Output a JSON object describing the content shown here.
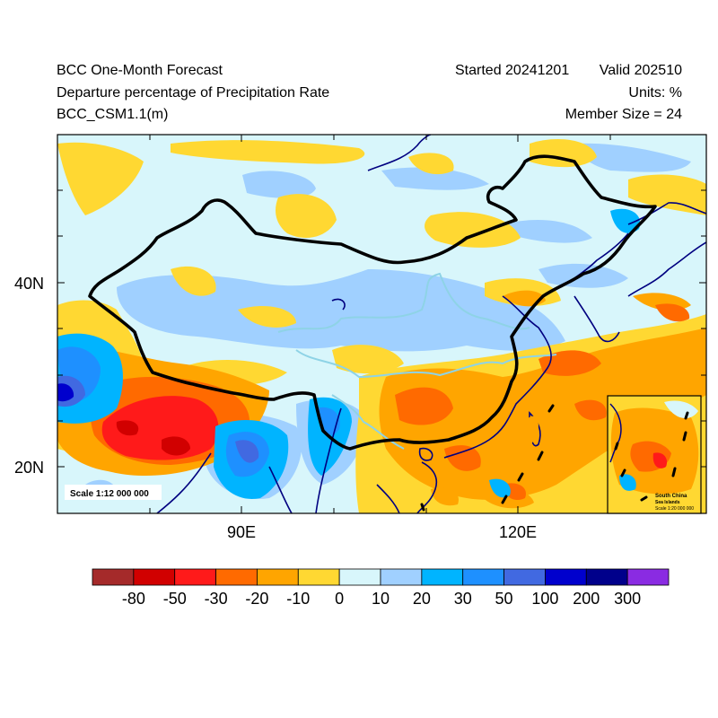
{
  "header": {
    "title_left_1": "BCC One-Month Forecast",
    "title_left_2": "Departure percentage of Precipitation Rate",
    "title_left_3": "BCC_CSM1.1(m)",
    "started": "Started 20241201",
    "valid": "Valid 202510",
    "units": "Units: %",
    "member_size": "Member Size = 24"
  },
  "axes": {
    "lat_labels": [
      "40N",
      "20N"
    ],
    "lon_labels": [
      "90E",
      "120E"
    ]
  },
  "scale_note": "Scale 1:12 000 000",
  "inset": {
    "title_1": "South China",
    "title_2": "Sea Islands",
    "scale": "Scale 1:20 000 000"
  },
  "colorbar": {
    "labels": [
      "-80",
      "-50",
      "-30",
      "-20",
      "-10",
      "0",
      "10",
      "20",
      "30",
      "50",
      "100",
      "200",
      "300"
    ],
    "colors": [
      "#a52a2a",
      "#d10000",
      "#ff1a1a",
      "#ff6a00",
      "#ffa500",
      "#ffd832",
      "#d8f6fb",
      "#a0d0ff",
      "#00b4ff",
      "#1e90ff",
      "#4169e1",
      "#0000cd",
      "#00008b",
      "#8a2be2"
    ]
  },
  "palette": {
    "light": "#d8f6fb",
    "lightblue": "#a0d0ff",
    "yellow": "#ffd832",
    "orange": "#ffa500",
    "darkorange": "#ff6a00",
    "red": "#ff1a1a",
    "darkred": "#d10000",
    "cyan": "#00b4ff",
    "blue": "#1e90ff",
    "royal": "#4169e1",
    "navy": "#0000cd",
    "border": "#000000",
    "coast": "#000080",
    "river": "#8ed3e6"
  }
}
